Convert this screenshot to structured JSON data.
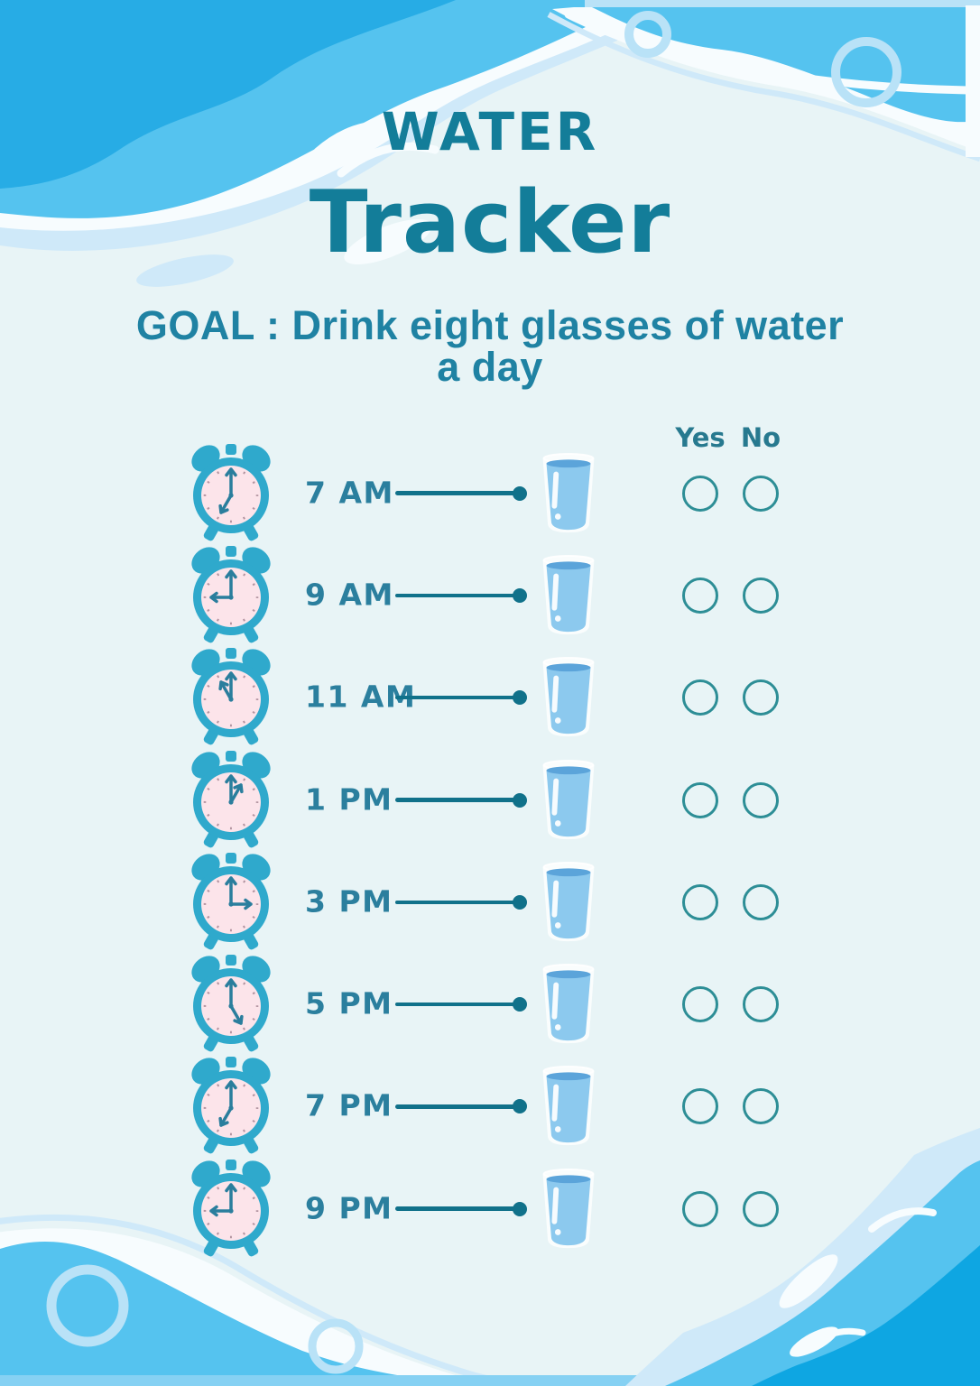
{
  "header": {
    "title_top": "WATER",
    "title_main": "Tracker",
    "goal_line1": "GOAL : Drink eight glasses of water",
    "goal_line2": "a day"
  },
  "columns": {
    "yes": "Yes",
    "no": "No"
  },
  "rows": [
    {
      "time": "7 AM",
      "clock_hour_angle": 210
    },
    {
      "time": "9 AM",
      "clock_hour_angle": 270
    },
    {
      "time": "11 AM",
      "clock_hour_angle": 330
    },
    {
      "time": "1 PM",
      "clock_hour_angle": 30
    },
    {
      "time": "3 PM",
      "clock_hour_angle": 90
    },
    {
      "time": "5 PM",
      "clock_hour_angle": 150
    },
    {
      "time": "7 PM",
      "clock_hour_angle": 210
    },
    {
      "time": "9 PM",
      "clock_hour_angle": 270
    }
  ],
  "icons": {
    "row_left": "alarm-clock-icon",
    "row_right": "water-glass-icon"
  },
  "colors": {
    "bg": "#e8f4f6",
    "teal-title": "#137d99",
    "goal": "#1f82a3",
    "teal-text": "#27798f",
    "teal-text2": "#2b7f9e",
    "line": "#10718a",
    "circle": "#2d8e96",
    "clock-body": "#2fa9cc",
    "clock-face": "#fce4ea",
    "clock-hand": "#2a7e9d",
    "water": "#8cc9ee",
    "water-top": "#5ba4da",
    "sky": "#55c3ef",
    "cyan-deep": "#27ace5",
    "deep": "#0ea6e2",
    "pale": "#cfe9f9",
    "bubble": "#b9e2f7",
    "strip": "#86d1f3",
    "white-soft": "#f7fcfe"
  }
}
